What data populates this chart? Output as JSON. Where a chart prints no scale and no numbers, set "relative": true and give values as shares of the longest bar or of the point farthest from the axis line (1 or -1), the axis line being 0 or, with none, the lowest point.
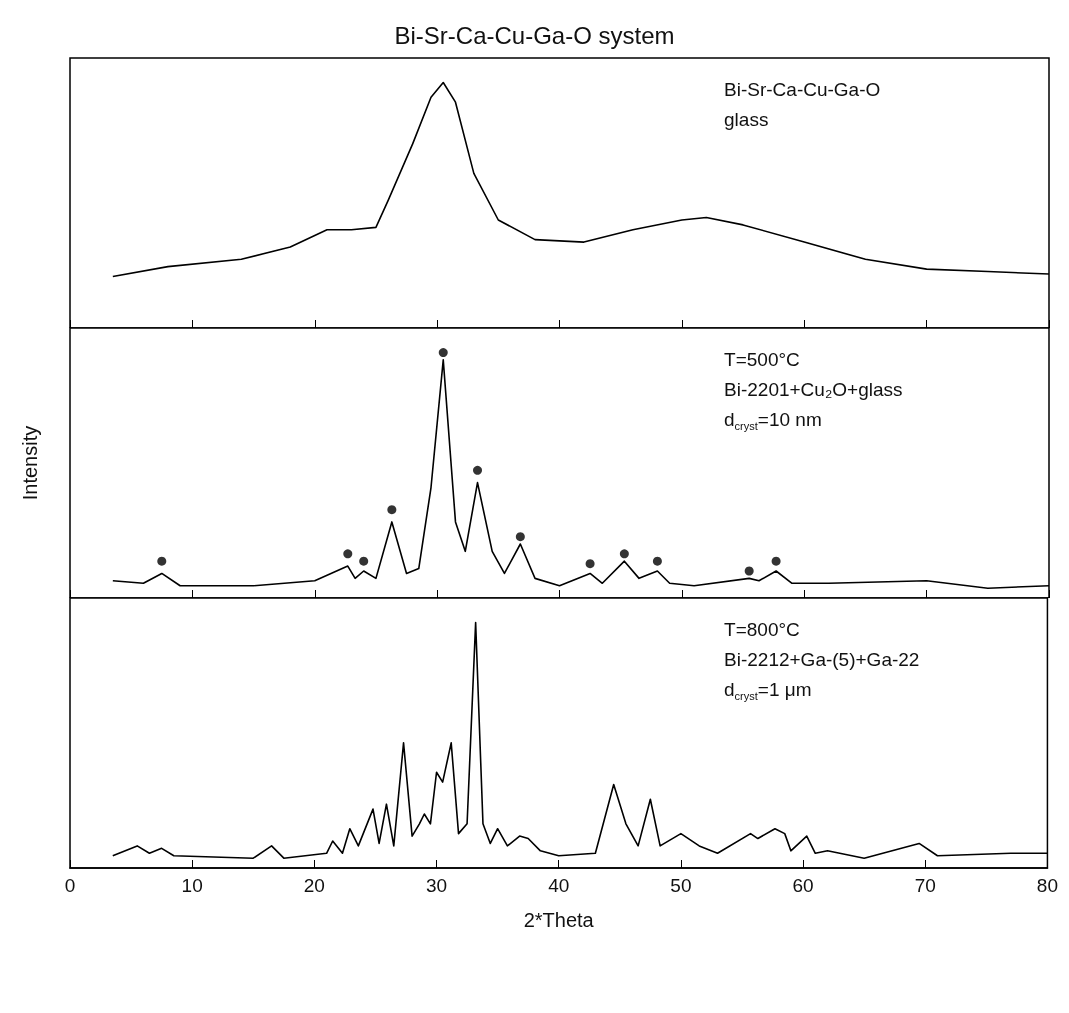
{
  "chart_data": [
    {
      "type": "line",
      "title": "Bi-Sr-Ca-Cu-Ga-O system",
      "relative": true,
      "xlim": [
        0,
        80
      ],
      "xticks": [
        0,
        10,
        20,
        30,
        40,
        50,
        60,
        70,
        80
      ],
      "tick_labels": false,
      "marker": "none",
      "line_style": "solid",
      "annotations": [
        "Bi-Sr-Ca-Cu-Ga-O",
        "glass"
      ],
      "series": [
        {
          "color": "#000000",
          "x": [
            3.5,
            8,
            14,
            18,
            21,
            23,
            25,
            26,
            28,
            29.5,
            30.5,
            31.5,
            33,
            35,
            38,
            42,
            46,
            50,
            52,
            55,
            60,
            65,
            70,
            75,
            80
          ],
          "values": [
            0.21,
            0.25,
            0.28,
            0.33,
            0.4,
            0.4,
            0.41,
            0.52,
            0.75,
            0.94,
            1.0,
            0.92,
            0.63,
            0.44,
            0.36,
            0.35,
            0.4,
            0.44,
            0.45,
            0.42,
            0.35,
            0.28,
            0.24,
            0.23,
            0.22
          ]
        }
      ]
    },
    {
      "type": "line",
      "ylabel": "Intensity",
      "relative": true,
      "xlim": [
        0,
        80
      ],
      "xticks": [
        0,
        10,
        20,
        30,
        40,
        50,
        60,
        70,
        80
      ],
      "tick_labels": false,
      "marker": "none",
      "line_style": "solid",
      "annotations": [
        "T=500°C",
        "Bi-2201+Cu₂O+glass",
        "d$_{cryst}$=10 nm"
      ],
      "series": [
        {
          "color": "#000000",
          "x": [
            3.5,
            6,
            7.5,
            9,
            15,
            20,
            22.7,
            23.3,
            24,
            25,
            26.3,
            27.5,
            28.5,
            29.5,
            30.5,
            31.5,
            32.3,
            33.3,
            34.5,
            35.5,
            36.8,
            38,
            40,
            42.5,
            43.5,
            45.3,
            46.5,
            48,
            49,
            51,
            55.5,
            56.3,
            57.7,
            59,
            62,
            70,
            75,
            80
          ],
          "values": [
            0.07,
            0.06,
            0.1,
            0.05,
            0.05,
            0.07,
            0.13,
            0.08,
            0.11,
            0.08,
            0.31,
            0.1,
            0.12,
            0.45,
            0.97,
            0.31,
            0.19,
            0.47,
            0.19,
            0.1,
            0.22,
            0.08,
            0.05,
            0.1,
            0.06,
            0.15,
            0.08,
            0.11,
            0.06,
            0.05,
            0.08,
            0.07,
            0.11,
            0.06,
            0.06,
            0.07,
            0.04,
            0.05
          ]
        },
        {
          "type": "scatter",
          "marker": "circle",
          "color": "#000000",
          "x": [
            7.5,
            22.7,
            24,
            26.3,
            30.5,
            33.3,
            36.8,
            42.5,
            45.3,
            48,
            55.5,
            57.7
          ],
          "values": [
            0.15,
            0.18,
            0.15,
            0.36,
            1.0,
            0.52,
            0.25,
            0.14,
            0.18,
            0.15,
            0.11,
            0.15
          ]
        }
      ]
    },
    {
      "type": "line",
      "xlabel": "2*Theta",
      "relative": true,
      "xlim": [
        0,
        80
      ],
      "xticks": [
        0,
        10,
        20,
        30,
        40,
        50,
        60,
        70,
        80
      ],
      "tick_labels": "x",
      "marker": "none",
      "line_style": "solid",
      "annotations": [
        "T=800°C",
        "Bi-2212+Ga-(5)+Ga-22",
        "d$_{cryst}$=1 μm"
      ],
      "series": [
        {
          "color": "#000000",
          "x": [
            3.5,
            5.5,
            6.5,
            7.5,
            8.5,
            15,
            16.5,
            17.5,
            21,
            21.5,
            22.3,
            22.9,
            23.6,
            24.8,
            25.3,
            25.9,
            26.5,
            27.3,
            28,
            28.6,
            29,
            29.5,
            30,
            30.5,
            31.2,
            31.8,
            32.5,
            33.2,
            33.8,
            34.4,
            35,
            35.8,
            36.8,
            37.5,
            38.5,
            40,
            43,
            44.5,
            45.5,
            46.5,
            47.5,
            48.3,
            50,
            51.5,
            53,
            55.7,
            56.3,
            57.7,
            58.5,
            59,
            60.3,
            61,
            62,
            65,
            69.5,
            71,
            77,
            80
          ],
          "values": [
            0.05,
            0.09,
            0.06,
            0.08,
            0.05,
            0.04,
            0.09,
            0.04,
            0.06,
            0.11,
            0.06,
            0.16,
            0.09,
            0.24,
            0.1,
            0.26,
            0.09,
            0.51,
            0.13,
            0.18,
            0.22,
            0.18,
            0.39,
            0.35,
            0.51,
            0.14,
            0.18,
            1.0,
            0.18,
            0.1,
            0.16,
            0.09,
            0.13,
            0.12,
            0.07,
            0.05,
            0.06,
            0.34,
            0.18,
            0.09,
            0.28,
            0.09,
            0.14,
            0.09,
            0.06,
            0.14,
            0.12,
            0.16,
            0.14,
            0.07,
            0.13,
            0.06,
            0.07,
            0.04,
            0.1,
            0.05,
            0.06,
            0.06
          ]
        }
      ]
    }
  ]
}
